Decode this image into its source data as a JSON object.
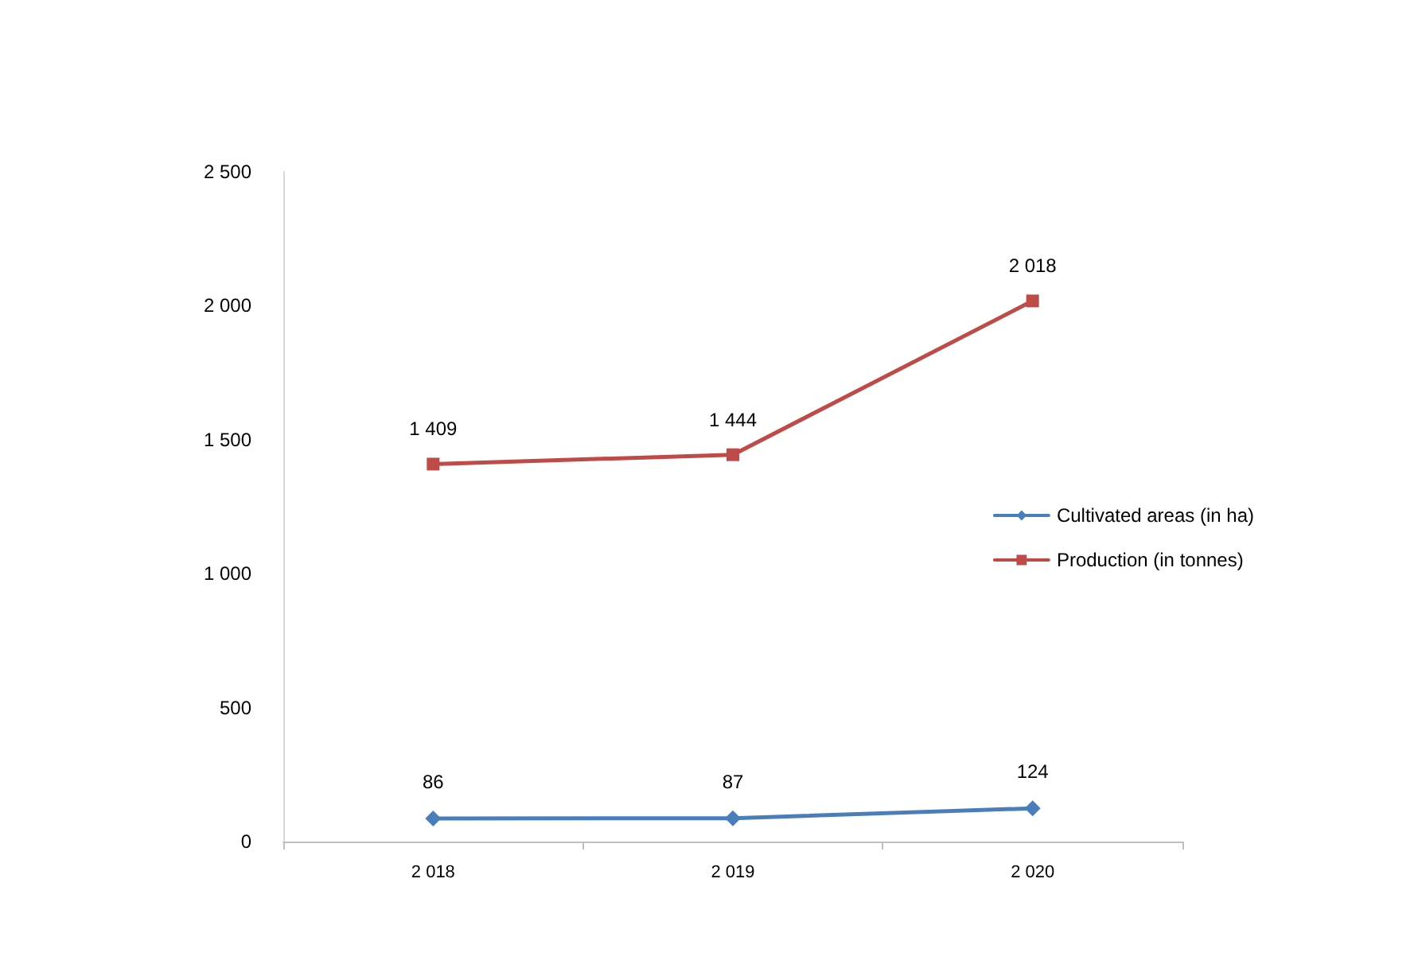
{
  "chart_data": {
    "type": "line",
    "categories": [
      "2 018",
      "2 019",
      "2 020"
    ],
    "series": [
      {
        "name": "Cultivated areas (in ha)",
        "color": "#4a7ebb",
        "marker": "diamond",
        "values": [
          86,
          87,
          124
        ],
        "value_labels": [
          "86",
          "87",
          "124"
        ]
      },
      {
        "name": "Production (in tonnes)",
        "color": "#be4b48",
        "marker": "square",
        "values": [
          1409,
          1444,
          2018
        ],
        "value_labels": [
          "1 409",
          "1 444",
          "2 018"
        ]
      }
    ],
    "ylim": [
      0,
      2500
    ],
    "yticks": [
      0,
      500,
      {
        "value": 1000,
        "label": "1 000"
      },
      {
        "value": 1500,
        "label": "1 500"
      },
      {
        "value": 2000,
        "label": "2 000"
      },
      {
        "value": 2500,
        "label": "2 500"
      }
    ],
    "grid": false,
    "legend": "right",
    "line_style": "solid"
  }
}
